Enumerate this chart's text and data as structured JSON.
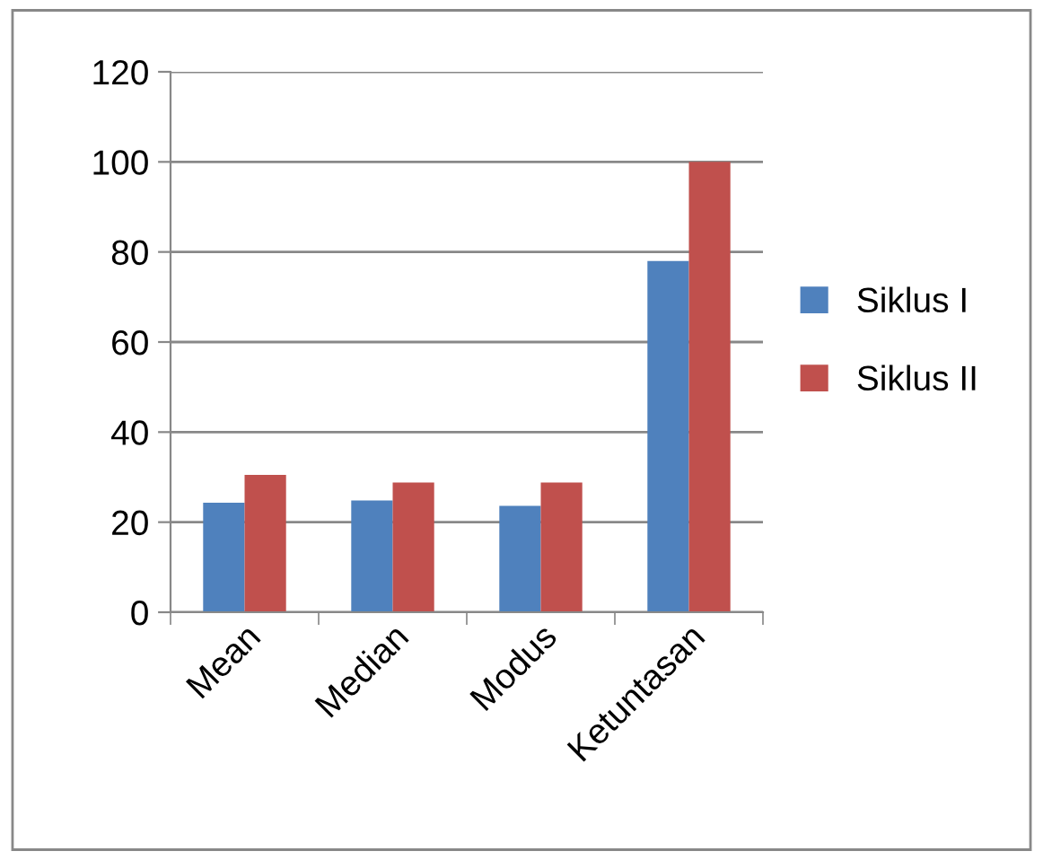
{
  "chart_data": {
    "type": "bar",
    "categories": [
      "Mean",
      "Median",
      "Modus",
      "Ketuntasan"
    ],
    "series": [
      {
        "name": "Siklus I",
        "color": "#4f81bd",
        "values": [
          24.3,
          24.8,
          23.6,
          78
        ]
      },
      {
        "name": "Siklus II",
        "color": "#c0504d",
        "values": [
          30.5,
          28.8,
          28.8,
          100
        ]
      }
    ],
    "ylim": [
      0,
      120
    ],
    "yticks": [
      0,
      20,
      40,
      60,
      80,
      100,
      120
    ],
    "grid": "y",
    "legend": "right"
  }
}
